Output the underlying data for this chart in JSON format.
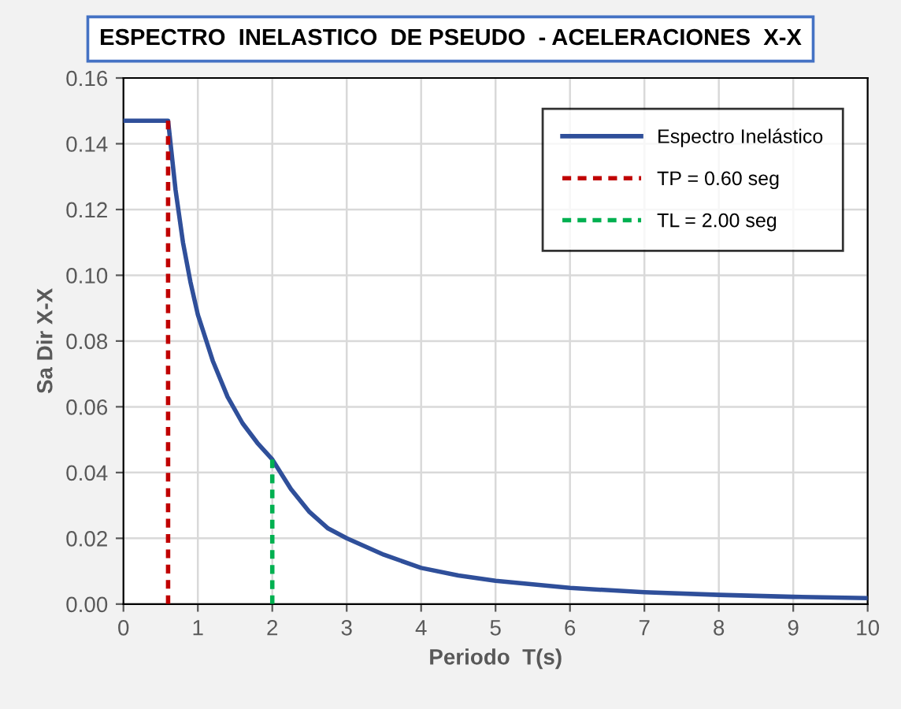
{
  "chart_data": {
    "type": "line",
    "title": "ESPECTRO  INELASTICO  DE PSEUDO  - ACELERACIONES  X-X",
    "xlabel": "Periodo  T(s)",
    "ylabel": "Sa Dir X-X",
    "series": [
      {
        "name": "Espectro Inelástico",
        "color": "#2f4f9a",
        "line_style": "solid",
        "x": [
          0,
          0.6,
          0.7,
          0.8,
          0.9,
          1,
          1.2,
          1.4,
          1.6,
          1.8,
          2,
          2.25,
          2.5,
          2.75,
          3,
          3.5,
          4,
          4.5,
          5,
          6,
          7,
          8,
          9,
          10
        ],
        "values": [
          0.147,
          0.147,
          0.126,
          0.11,
          0.098,
          0.088,
          0.074,
          0.063,
          0.055,
          0.049,
          0.044,
          0.035,
          0.028,
          0.023,
          0.02,
          0.015,
          0.011,
          0.0087,
          0.0071,
          0.0049,
          0.0036,
          0.0028,
          0.0022,
          0.0018
        ]
      },
      {
        "name": "TP = 0.60 seg",
        "color": "#c00000",
        "line_style": "dashed",
        "x": [
          0.6,
          0.6
        ],
        "values": [
          0,
          0.147
        ]
      },
      {
        "name": "TL = 2.00 seg",
        "color": "#00b050",
        "line_style": "dashed",
        "x": [
          2,
          2
        ],
        "values": [
          0,
          0.044
        ]
      }
    ],
    "xlim": [
      0,
      10
    ],
    "xticks": [
      0,
      1,
      2,
      3,
      4,
      5,
      6,
      7,
      8,
      9,
      10
    ],
    "ylim": [
      0,
      0.16
    ],
    "yticks": [
      {
        "value": 0,
        "label": "0.00"
      },
      {
        "value": 0.02,
        "label": "0.02"
      },
      {
        "value": 0.04,
        "label": "0.04"
      },
      {
        "value": 0.06,
        "label": "0.06"
      },
      {
        "value": 0.08,
        "label": "0.08"
      },
      {
        "value": 0.1,
        "label": "0.10"
      },
      {
        "value": 0.12,
        "label": "0.12"
      },
      {
        "value": 0.14,
        "label": "0.14"
      },
      {
        "value": 0.16,
        "label": "0.16"
      }
    ],
    "grid": true,
    "legend": "top right",
    "marker": "none"
  }
}
